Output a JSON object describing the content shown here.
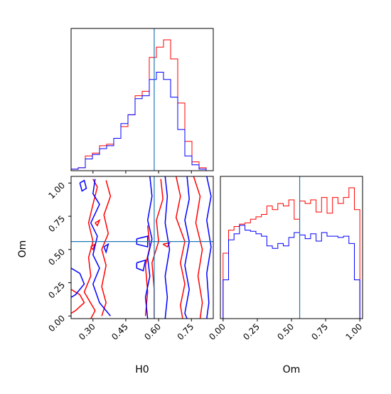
{
  "colors": {
    "red": "#ff0000",
    "blue": "#0000ff",
    "truth": "#1f77b4",
    "axes": "#000000"
  },
  "chart_data": [
    {
      "type": "histogram",
      "panel": "H0 marginal",
      "xlim": [
        0.2,
        0.85
      ],
      "truth": 0.58,
      "bin_edges": [
        0.2,
        0.2325,
        0.265,
        0.2975,
        0.33,
        0.3625,
        0.395,
        0.4275,
        0.46,
        0.4925,
        0.525,
        0.5575,
        0.59,
        0.6225,
        0.655,
        0.6875,
        0.72,
        0.7525,
        0.785,
        0.8175,
        0.85
      ],
      "series": [
        {
          "color": "red",
          "values": [
            0.01,
            0.02,
            0.1,
            0.12,
            0.17,
            0.18,
            0.22,
            0.3,
            0.38,
            0.51,
            0.54,
            0.77,
            0.84,
            0.89,
            0.76,
            0.46,
            0.2,
            0.06,
            0.02,
            0.0
          ]
        },
        {
          "color": "blue",
          "values": [
            0.01,
            0.02,
            0.08,
            0.11,
            0.15,
            0.17,
            0.22,
            0.32,
            0.38,
            0.49,
            0.51,
            0.62,
            0.67,
            0.62,
            0.5,
            0.28,
            0.1,
            0.04,
            0.01,
            0.0
          ]
        }
      ]
    },
    {
      "type": "contour",
      "panel": "H0 vs Om",
      "xlabel": "H0",
      "ylabel": "Om",
      "xlim": [
        0.2,
        0.85
      ],
      "ylim": [
        -0.02,
        1.05
      ],
      "xticks": [
        "0.30",
        "0.45",
        "0.60",
        "0.75"
      ],
      "xtick_values": [
        0.3,
        0.45,
        0.6,
        0.75
      ],
      "yticks": [
        "0.00",
        "0.25",
        "0.50",
        "0.75",
        "1.00"
      ],
      "ytick_values": [
        0.0,
        0.25,
        0.5,
        0.75,
        1.0
      ],
      "truth": {
        "x": 0.58,
        "y": 0.56
      },
      "series": [
        {
          "color": "red",
          "contours": [
            [
              [
                0.3,
                1.03
              ],
              [
                0.32,
                0.97
              ],
              [
                0.3,
                0.84
              ],
              [
                0.28,
                0.7
              ],
              [
                0.3,
                0.56
              ],
              [
                0.28,
                0.44
              ],
              [
                0.29,
                0.3
              ],
              [
                0.26,
                0.18
              ],
              [
                0.31,
                0.04
              ],
              [
                0.29,
                -0.02
              ]
            ],
            [
              [
                0.2,
                0.2
              ],
              [
                0.24,
                0.16
              ],
              [
                0.26,
                0.1
              ],
              [
                0.22,
                0.04
              ],
              [
                0.2,
                0.02
              ]
            ],
            [
              [
                0.36,
                1.02
              ],
              [
                0.38,
                0.9
              ],
              [
                0.35,
                0.76
              ],
              [
                0.37,
                0.62
              ],
              [
                0.34,
                0.5
              ],
              [
                0.36,
                0.38
              ],
              [
                0.34,
                0.22
              ],
              [
                0.36,
                0.1
              ],
              [
                0.34,
                0.0
              ]
            ],
            [
              [
                0.58,
                -0.02
              ],
              [
                0.58,
                0.2
              ],
              [
                0.57,
                0.4
              ],
              [
                0.6,
                0.56
              ],
              [
                0.59,
                0.72
              ],
              [
                0.62,
                0.88
              ],
              [
                0.61,
                1.03
              ]
            ],
            [
              [
                0.54,
                0.0
              ],
              [
                0.55,
                0.18
              ],
              [
                0.54,
                0.38
              ],
              [
                0.56,
                0.52
              ],
              [
                0.55,
                0.68
              ]
            ],
            [
              [
                0.68,
                1.05
              ],
              [
                0.7,
                0.9
              ],
              [
                0.68,
                0.74
              ],
              [
                0.72,
                0.56
              ],
              [
                0.7,
                0.4
              ],
              [
                0.72,
                0.24
              ],
              [
                0.7,
                0.08
              ],
              [
                0.71,
                -0.02
              ]
            ],
            [
              [
                0.76,
                1.05
              ],
              [
                0.79,
                0.9
              ],
              [
                0.77,
                0.7
              ],
              [
                0.8,
                0.5
              ],
              [
                0.78,
                0.3
              ],
              [
                0.8,
                0.1
              ],
              [
                0.79,
                -0.02
              ]
            ],
            [
              [
                0.62,
                0.54
              ],
              [
                0.65,
                0.55
              ],
              [
                0.64,
                0.52
              ],
              [
                0.62,
                0.54
              ]
            ],
            [
              [
                0.31,
                0.7
              ],
              [
                0.33,
                0.72
              ],
              [
                0.32,
                0.68
              ],
              [
                0.31,
                0.7
              ]
            ],
            [
              [
                0.29,
                0.52
              ],
              [
                0.31,
                0.54
              ],
              [
                0.3,
                0.5
              ],
              [
                0.29,
                0.52
              ]
            ]
          ]
        },
        {
          "color": "blue",
          "contours": [
            [
              [
                0.24,
                1.0
              ],
              [
                0.25,
                0.94
              ],
              [
                0.27,
                0.96
              ],
              [
                0.26,
                1.02
              ],
              [
                0.24,
                1.0
              ]
            ],
            [
              [
                0.31,
                1.03
              ],
              [
                0.3,
                0.92
              ],
              [
                0.33,
                0.84
              ],
              [
                0.29,
                0.7
              ],
              [
                0.32,
                0.6
              ],
              [
                0.3,
                0.46
              ],
              [
                0.33,
                0.36
              ],
              [
                0.3,
                0.24
              ],
              [
                0.33,
                0.1
              ],
              [
                0.38,
                0.0
              ]
            ],
            [
              [
                0.2,
                0.36
              ],
              [
                0.24,
                0.32
              ],
              [
                0.26,
                0.24
              ],
              [
                0.22,
                0.16
              ],
              [
                0.2,
                0.14
              ]
            ],
            [
              [
                0.56,
                1.05
              ],
              [
                0.57,
                0.9
              ],
              [
                0.55,
                0.72
              ],
              [
                0.57,
                0.58
              ],
              [
                0.55,
                0.44
              ],
              [
                0.56,
                0.3
              ],
              [
                0.54,
                0.14
              ],
              [
                0.55,
                -0.02
              ]
            ],
            [
              [
                0.63,
                1.05
              ],
              [
                0.64,
                0.9
              ],
              [
                0.63,
                0.7
              ],
              [
                0.65,
                0.5
              ],
              [
                0.63,
                0.3
              ],
              [
                0.64,
                0.14
              ],
              [
                0.63,
                -0.02
              ]
            ],
            [
              [
                0.73,
                1.05
              ],
              [
                0.74,
                0.88
              ],
              [
                0.72,
                0.72
              ],
              [
                0.74,
                0.56
              ],
              [
                0.72,
                0.38
              ],
              [
                0.74,
                0.2
              ],
              [
                0.72,
                0.02
              ],
              [
                0.73,
                -0.02
              ]
            ],
            [
              [
                0.82,
                1.05
              ],
              [
                0.84,
                0.9
              ],
              [
                0.82,
                0.72
              ],
              [
                0.84,
                0.52
              ],
              [
                0.82,
                0.32
              ],
              [
                0.83,
                0.1
              ],
              [
                0.82,
                -0.02
              ]
            ],
            [
              [
                0.5,
                0.58
              ],
              [
                0.55,
                0.6
              ],
              [
                0.55,
                0.52
              ],
              [
                0.5,
                0.54
              ],
              [
                0.5,
                0.58
              ]
            ],
            [
              [
                0.5,
                0.4
              ],
              [
                0.54,
                0.42
              ],
              [
                0.53,
                0.34
              ],
              [
                0.5,
                0.36
              ],
              [
                0.5,
                0.4
              ]
            ],
            [
              [
                0.35,
                0.52
              ],
              [
                0.37,
                0.54
              ],
              [
                0.36,
                0.48
              ],
              [
                0.35,
                0.52
              ]
            ]
          ]
        }
      ]
    },
    {
      "type": "histogram",
      "panel": "Om marginal",
      "xlabel": "Om",
      "xlim": [
        -0.02,
        1.02
      ],
      "xticks": [
        "0.00",
        "0.25",
        "0.50",
        "0.75",
        "1.00"
      ],
      "xtick_values": [
        0.0,
        0.25,
        0.5,
        0.75,
        1.0
      ],
      "truth": 0.56,
      "bin_edges": [
        0.0,
        0.04,
        0.08,
        0.12,
        0.16,
        0.2,
        0.24,
        0.28,
        0.32,
        0.36,
        0.4,
        0.44,
        0.48,
        0.52,
        0.56,
        0.6,
        0.64,
        0.68,
        0.72,
        0.76,
        0.8,
        0.84,
        0.88,
        0.92,
        0.96,
        1.0
      ],
      "series": [
        {
          "color": "red",
          "values": [
            0.54,
            0.73,
            0.76,
            0.78,
            0.79,
            0.82,
            0.84,
            0.86,
            0.93,
            0.9,
            0.95,
            0.93,
            0.98,
            0.82,
            0.97,
            0.95,
            0.98,
            0.88,
            1.0,
            0.87,
            1.0,
            0.95,
            1.0,
            1.08,
            0.9
          ]
        },
        {
          "color": "blue",
          "values": [
            0.32,
            0.65,
            0.7,
            0.77,
            0.73,
            0.72,
            0.7,
            0.68,
            0.6,
            0.58,
            0.62,
            0.6,
            0.67,
            0.71,
            0.69,
            0.66,
            0.7,
            0.64,
            0.71,
            0.68,
            0.68,
            0.67,
            0.68,
            0.62,
            0.32
          ]
        }
      ]
    }
  ]
}
